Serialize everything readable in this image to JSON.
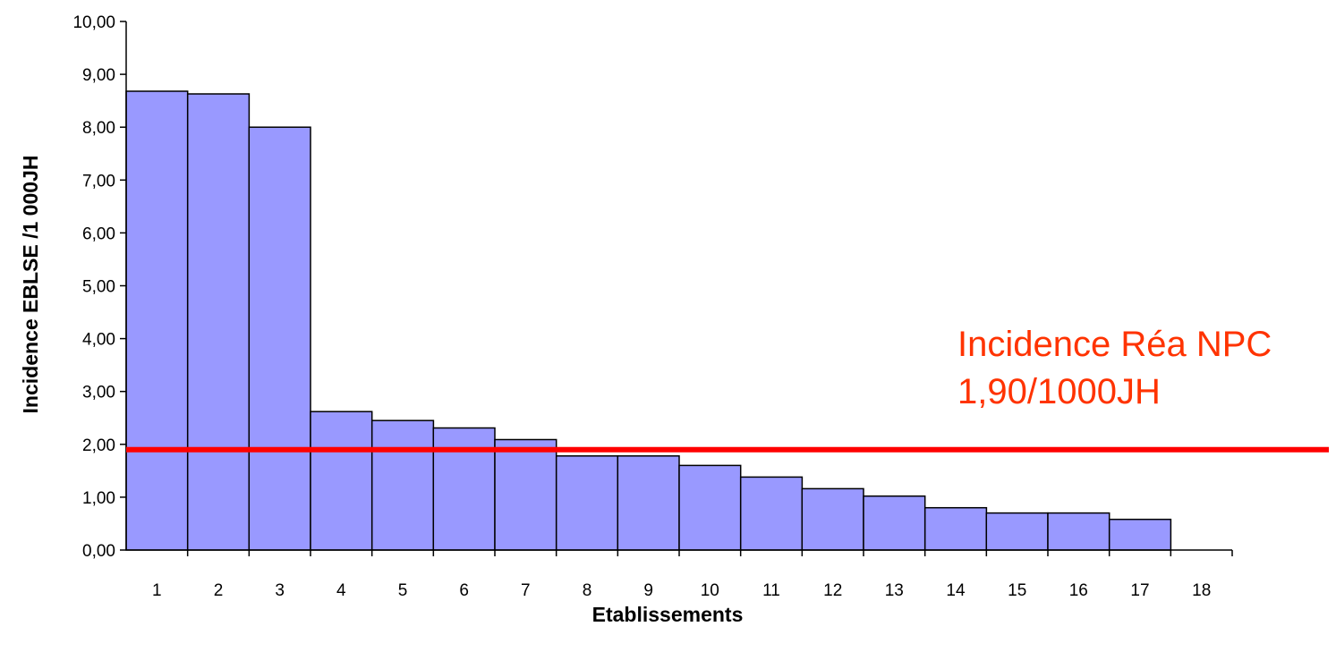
{
  "chart_data": {
    "type": "bar",
    "xlabel": "Etablissements",
    "ylabel": "Incidence EBLSE /1 000JH",
    "ylim": [
      0,
      10
    ],
    "yticks": [
      "0,00",
      "1,00",
      "2,00",
      "3,00",
      "4,00",
      "5,00",
      "6,00",
      "7,00",
      "8,00",
      "9,00",
      "10,00"
    ],
    "categories": [
      "1",
      "2",
      "3",
      "4",
      "5",
      "6",
      "7",
      "8",
      "9",
      "10",
      "11",
      "12",
      "13",
      "14",
      "15",
      "16",
      "17",
      "18"
    ],
    "values": [
      8.68,
      8.63,
      8.0,
      2.62,
      2.45,
      2.31,
      2.09,
      1.78,
      1.78,
      1.6,
      1.38,
      1.16,
      1.02,
      0.8,
      0.7,
      0.7,
      0.58,
      null
    ],
    "bar_color": "#9999ff",
    "bar_border": "#000000",
    "grid": false,
    "reference_line": {
      "value": 1.9,
      "color": "#ff0000",
      "label_lines": [
        "Incidence Réa NPC",
        "1,90/1000JH"
      ],
      "label_color": "#ff3300"
    }
  }
}
